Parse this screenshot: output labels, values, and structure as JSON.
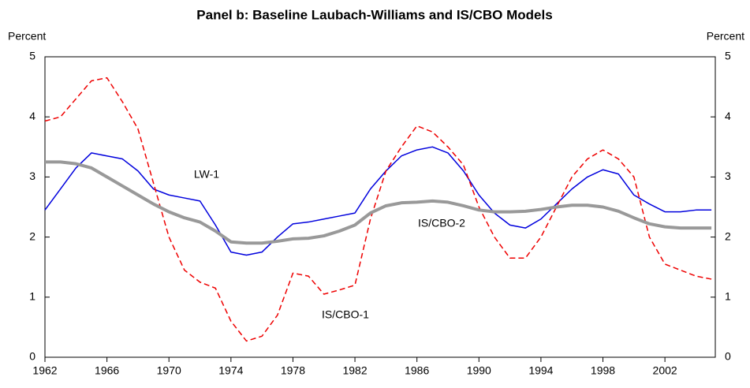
{
  "chart_data": {
    "type": "line",
    "title": "Panel b: Baseline Laubach-Williams and IS/CBO Models",
    "y_label": "Percent",
    "y2_label": "Percent",
    "x": [
      1962,
      1963,
      1964,
      1965,
      1966,
      1967,
      1968,
      1969,
      1970,
      1971,
      1972,
      1973,
      1974,
      1975,
      1976,
      1977,
      1978,
      1979,
      1980,
      1981,
      1982,
      1983,
      1984,
      1985,
      1986,
      1987,
      1988,
      1989,
      1990,
      1991,
      1992,
      1993,
      1994,
      1995,
      1996,
      1997,
      1998,
      1999,
      2000,
      2001,
      2002,
      2003,
      2004,
      2005
    ],
    "series": [
      {
        "name": "LW-1",
        "color": "#0000dd",
        "style": "solid",
        "width": 1.5,
        "values": [
          2.45,
          2.8,
          3.15,
          3.4,
          3.35,
          3.3,
          3.1,
          2.8,
          2.7,
          2.65,
          2.6,
          2.2,
          1.75,
          1.7,
          1.75,
          2.0,
          2.22,
          2.25,
          2.3,
          2.35,
          2.4,
          2.8,
          3.1,
          3.35,
          3.45,
          3.5,
          3.4,
          3.1,
          2.7,
          2.4,
          2.2,
          2.15,
          2.3,
          2.55,
          2.8,
          3.0,
          3.12,
          3.05,
          2.7,
          2.55,
          2.42,
          2.42,
          2.45,
          2.45
        ]
      },
      {
        "name": "IS/CBO-1",
        "color": "#ee0000",
        "style": "dashed",
        "width": 1.5,
        "values": [
          3.93,
          4.0,
          4.3,
          4.6,
          4.65,
          4.25,
          3.8,
          2.9,
          2.0,
          1.45,
          1.25,
          1.15,
          0.6,
          0.27,
          0.35,
          0.7,
          1.4,
          1.35,
          1.05,
          1.12,
          1.2,
          2.3,
          3.1,
          3.5,
          3.85,
          3.75,
          3.5,
          3.2,
          2.5,
          2.0,
          1.65,
          1.65,
          2.0,
          2.5,
          3.0,
          3.3,
          3.45,
          3.3,
          3.0,
          2.0,
          1.55,
          1.45,
          1.35,
          1.3
        ]
      },
      {
        "name": "IS/CBO-2",
        "color": "#999999",
        "style": "solid",
        "width": 4,
        "values": [
          3.25,
          3.25,
          3.22,
          3.15,
          3.0,
          2.85,
          2.7,
          2.55,
          2.42,
          2.32,
          2.25,
          2.1,
          1.92,
          1.9,
          1.9,
          1.93,
          1.97,
          1.98,
          2.02,
          2.1,
          2.2,
          2.4,
          2.52,
          2.57,
          2.58,
          2.6,
          2.58,
          2.52,
          2.45,
          2.42,
          2.42,
          2.43,
          2.46,
          2.5,
          2.53,
          2.53,
          2.5,
          2.43,
          2.32,
          2.22,
          2.17,
          2.15,
          2.15,
          2.15
        ]
      }
    ],
    "xlim": [
      1962,
      2005.25
    ],
    "xticks": [
      1962,
      1966,
      1970,
      1974,
      1978,
      1982,
      1986,
      1990,
      1994,
      1998,
      2002
    ],
    "ylim": [
      0,
      5
    ],
    "yticks": [
      0,
      1,
      2,
      3,
      4,
      5
    ],
    "y2lim": [
      0,
      5
    ],
    "y2ticks": [
      0,
      1,
      2,
      3,
      4,
      5
    ],
    "grid": false,
    "legend": false
  }
}
